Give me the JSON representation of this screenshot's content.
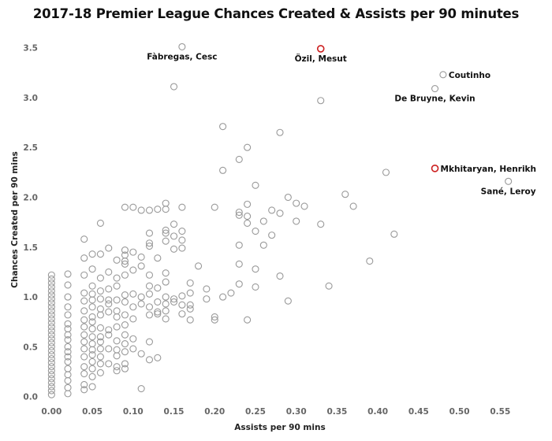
{
  "chart_data": {
    "type": "scatter",
    "title": "2017-18 Premier League Chances Created & Assists per 90 minutes",
    "xlabel": "Assists per 90 mins",
    "ylabel": "Chances Created per 90 mins",
    "xlim": [
      -0.01,
      0.57
    ],
    "ylim": [
      -0.05,
      3.6
    ],
    "xticks": [
      0.0,
      0.05,
      0.1,
      0.15,
      0.2,
      0.25,
      0.3,
      0.35,
      0.4,
      0.45,
      0.5,
      0.55
    ],
    "xtick_labels": [
      "0.00",
      "0.05",
      "0.10",
      "0.15",
      "0.20",
      "0.25",
      "0.30",
      "0.35",
      "0.40",
      "0.45",
      "0.50",
      "0.55"
    ],
    "yticks": [
      0.0,
      0.5,
      1.0,
      1.5,
      2.0,
      2.5,
      3.0,
      3.5
    ],
    "ytick_labels": [
      "0.0",
      "0.5",
      "1.0",
      "1.5",
      "2.0",
      "2.5",
      "3.0",
      "3.5"
    ],
    "grid": false,
    "colors": {
      "default_marker": "#999999",
      "highlight_marker": "#cc1f1f"
    },
    "labeled_points": [
      {
        "name": "Fàbregas, Cesc",
        "x": 0.16,
        "y": 3.51,
        "highlight": false,
        "label_side": "below"
      },
      {
        "name": "Özil, Mesut",
        "x": 0.33,
        "y": 3.49,
        "highlight": true,
        "label_side": "below"
      },
      {
        "name": "Coutinho",
        "x": 0.48,
        "y": 3.23,
        "highlight": false,
        "label_side": "right"
      },
      {
        "name": "De Bruyne, Kevin",
        "x": 0.47,
        "y": 3.09,
        "highlight": false,
        "label_side": "below"
      },
      {
        "name": "Mkhitaryan, Henrikh",
        "x": 0.47,
        "y": 2.29,
        "highlight": true,
        "label_side": "right"
      },
      {
        "name": "Sané, Leroy",
        "x": 0.56,
        "y": 2.16,
        "highlight": false,
        "label_side": "below"
      }
    ],
    "points": [
      [
        0.15,
        3.11
      ],
      [
        0.33,
        2.97
      ],
      [
        0.21,
        2.71
      ],
      [
        0.28,
        2.65
      ],
      [
        0.24,
        2.5
      ],
      [
        0.23,
        2.38
      ],
      [
        0.21,
        2.27
      ],
      [
        0.41,
        2.25
      ],
      [
        0.25,
        2.12
      ],
      [
        0.36,
        2.03
      ],
      [
        0.29,
        2.0
      ],
      [
        0.3,
        1.94
      ],
      [
        0.31,
        1.91
      ],
      [
        0.24,
        1.93
      ],
      [
        0.37,
        1.91
      ],
      [
        0.2,
        1.9
      ],
      [
        0.27,
        1.87
      ],
      [
        0.28,
        1.84
      ],
      [
        0.23,
        1.85
      ],
      [
        0.23,
        1.82
      ],
      [
        0.24,
        1.81
      ],
      [
        0.26,
        1.76
      ],
      [
        0.3,
        1.76
      ],
      [
        0.24,
        1.74
      ],
      [
        0.33,
        1.73
      ],
      [
        0.25,
        1.66
      ],
      [
        0.27,
        1.62
      ],
      [
        0.42,
        1.63
      ],
      [
        0.23,
        1.52
      ],
      [
        0.26,
        1.52
      ],
      [
        0.39,
        1.36
      ],
      [
        0.23,
        1.33
      ],
      [
        0.25,
        1.28
      ],
      [
        0.28,
        1.21
      ],
      [
        0.34,
        1.11
      ],
      [
        0.25,
        1.1
      ],
      [
        0.23,
        1.13
      ],
      [
        0.22,
        1.04
      ],
      [
        0.21,
        1.0
      ],
      [
        0.29,
        0.96
      ],
      [
        0.24,
        0.77
      ],
      [
        0.2,
        0.8
      ],
      [
        0.2,
        0.77
      ],
      [
        0.19,
        1.08
      ],
      [
        0.19,
        0.98
      ],
      [
        0.18,
        1.31
      ],
      [
        0.17,
        1.14
      ],
      [
        0.17,
        1.04
      ],
      [
        0.17,
        0.92
      ],
      [
        0.17,
        0.88
      ],
      [
        0.17,
        0.77
      ],
      [
        0.16,
        1.9
      ],
      [
        0.16,
        1.66
      ],
      [
        0.16,
        1.57
      ],
      [
        0.16,
        1.49
      ],
      [
        0.16,
        1.01
      ],
      [
        0.16,
        0.92
      ],
      [
        0.16,
        0.83
      ],
      [
        0.15,
        1.73
      ],
      [
        0.15,
        1.61
      ],
      [
        0.15,
        1.48
      ],
      [
        0.15,
        0.98
      ],
      [
        0.15,
        0.95
      ],
      [
        0.14,
        1.94
      ],
      [
        0.14,
        1.88
      ],
      [
        0.14,
        1.67
      ],
      [
        0.14,
        1.64
      ],
      [
        0.14,
        1.56
      ],
      [
        0.14,
        1.24
      ],
      [
        0.14,
        1.15
      ],
      [
        0.14,
        1.0
      ],
      [
        0.14,
        0.93
      ],
      [
        0.14,
        0.86
      ],
      [
        0.14,
        0.78
      ],
      [
        0.13,
        1.88
      ],
      [
        0.13,
        1.39
      ],
      [
        0.13,
        1.09
      ],
      [
        0.13,
        0.95
      ],
      [
        0.13,
        0.85
      ],
      [
        0.13,
        0.83
      ],
      [
        0.13,
        0.39
      ],
      [
        0.12,
        1.87
      ],
      [
        0.12,
        1.64
      ],
      [
        0.12,
        1.54
      ],
      [
        0.12,
        1.51
      ],
      [
        0.12,
        1.22
      ],
      [
        0.12,
        1.11
      ],
      [
        0.12,
        1.03
      ],
      [
        0.12,
        0.9
      ],
      [
        0.12,
        0.82
      ],
      [
        0.12,
        0.55
      ],
      [
        0.12,
        0.37
      ],
      [
        0.11,
        1.87
      ],
      [
        0.11,
        1.4
      ],
      [
        0.11,
        1.31
      ],
      [
        0.11,
        1.0
      ],
      [
        0.11,
        0.93
      ],
      [
        0.11,
        0.43
      ],
      [
        0.11,
        0.08
      ],
      [
        0.1,
        1.9
      ],
      [
        0.1,
        1.45
      ],
      [
        0.1,
        1.27
      ],
      [
        0.1,
        1.03
      ],
      [
        0.1,
        0.9
      ],
      [
        0.1,
        0.78
      ],
      [
        0.1,
        0.58
      ],
      [
        0.1,
        0.48
      ],
      [
        0.09,
        1.9
      ],
      [
        0.09,
        1.47
      ],
      [
        0.09,
        1.42
      ],
      [
        0.09,
        1.36
      ],
      [
        0.09,
        1.33
      ],
      [
        0.09,
        1.22
      ],
      [
        0.09,
        1.02
      ],
      [
        0.09,
        0.95
      ],
      [
        0.09,
        0.82
      ],
      [
        0.09,
        0.72
      ],
      [
        0.09,
        0.62
      ],
      [
        0.09,
        0.53
      ],
      [
        0.09,
        0.45
      ],
      [
        0.09,
        0.33
      ],
      [
        0.09,
        0.28
      ],
      [
        0.08,
        1.37
      ],
      [
        0.08,
        1.19
      ],
      [
        0.08,
        1.11
      ],
      [
        0.08,
        0.97
      ],
      [
        0.08,
        0.86
      ],
      [
        0.08,
        0.8
      ],
      [
        0.08,
        0.7
      ],
      [
        0.08,
        0.56
      ],
      [
        0.08,
        0.47
      ],
      [
        0.08,
        0.41
      ],
      [
        0.08,
        0.3
      ],
      [
        0.08,
        0.26
      ],
      [
        0.07,
        1.49
      ],
      [
        0.07,
        1.25
      ],
      [
        0.07,
        1.08
      ],
      [
        0.07,
        0.97
      ],
      [
        0.07,
        0.93
      ],
      [
        0.07,
        0.85
      ],
      [
        0.07,
        0.67
      ],
      [
        0.07,
        0.62
      ],
      [
        0.07,
        0.48
      ],
      [
        0.07,
        0.33
      ],
      [
        0.06,
        1.74
      ],
      [
        0.06,
        1.43
      ],
      [
        0.06,
        1.19
      ],
      [
        0.06,
        1.06
      ],
      [
        0.06,
        0.98
      ],
      [
        0.06,
        0.88
      ],
      [
        0.06,
        0.82
      ],
      [
        0.06,
        0.69
      ],
      [
        0.06,
        0.6
      ],
      [
        0.06,
        0.55
      ],
      [
        0.06,
        0.48
      ],
      [
        0.06,
        0.4
      ],
      [
        0.06,
        0.33
      ],
      [
        0.06,
        0.24
      ],
      [
        0.05,
        1.43
      ],
      [
        0.05,
        1.28
      ],
      [
        0.05,
        1.11
      ],
      [
        0.05,
        1.03
      ],
      [
        0.05,
        0.97
      ],
      [
        0.05,
        0.9
      ],
      [
        0.05,
        0.8
      ],
      [
        0.05,
        0.75
      ],
      [
        0.05,
        0.68
      ],
      [
        0.05,
        0.6
      ],
      [
        0.05,
        0.53
      ],
      [
        0.05,
        0.47
      ],
      [
        0.05,
        0.42
      ],
      [
        0.05,
        0.35
      ],
      [
        0.05,
        0.28
      ],
      [
        0.05,
        0.2
      ],
      [
        0.05,
        0.1
      ],
      [
        0.04,
        1.58
      ],
      [
        0.04,
        1.39
      ],
      [
        0.04,
        1.22
      ],
      [
        0.04,
        1.04
      ],
      [
        0.04,
        0.96
      ],
      [
        0.04,
        0.86
      ],
      [
        0.04,
        0.77
      ],
      [
        0.04,
        0.7
      ],
      [
        0.04,
        0.62
      ],
      [
        0.04,
        0.55
      ],
      [
        0.04,
        0.48
      ],
      [
        0.04,
        0.4
      ],
      [
        0.04,
        0.3
      ],
      [
        0.04,
        0.23
      ],
      [
        0.04,
        0.12
      ],
      [
        0.04,
        0.07
      ],
      [
        0.02,
        1.23
      ],
      [
        0.02,
        1.12
      ],
      [
        0.02,
        1.0
      ],
      [
        0.02,
        0.9
      ],
      [
        0.02,
        0.82
      ],
      [
        0.02,
        0.73
      ],
      [
        0.02,
        0.68
      ],
      [
        0.02,
        0.62
      ],
      [
        0.02,
        0.57
      ],
      [
        0.02,
        0.5
      ],
      [
        0.02,
        0.45
      ],
      [
        0.02,
        0.4
      ],
      [
        0.02,
        0.35
      ],
      [
        0.02,
        0.28
      ],
      [
        0.02,
        0.22
      ],
      [
        0.02,
        0.16
      ],
      [
        0.02,
        0.09
      ],
      [
        0.02,
        0.03
      ],
      [
        0.0,
        1.22
      ],
      [
        0.0,
        1.18
      ],
      [
        0.0,
        1.14
      ],
      [
        0.0,
        1.1
      ],
      [
        0.0,
        1.06
      ],
      [
        0.0,
        1.02
      ],
      [
        0.0,
        0.98
      ],
      [
        0.0,
        0.94
      ],
      [
        0.0,
        0.9
      ],
      [
        0.0,
        0.86
      ],
      [
        0.0,
        0.82
      ],
      [
        0.0,
        0.78
      ],
      [
        0.0,
        0.74
      ],
      [
        0.0,
        0.7
      ],
      [
        0.0,
        0.66
      ],
      [
        0.0,
        0.62
      ],
      [
        0.0,
        0.58
      ],
      [
        0.0,
        0.54
      ],
      [
        0.0,
        0.5
      ],
      [
        0.0,
        0.46
      ],
      [
        0.0,
        0.42
      ],
      [
        0.0,
        0.38
      ],
      [
        0.0,
        0.34
      ],
      [
        0.0,
        0.3
      ],
      [
        0.0,
        0.26
      ],
      [
        0.0,
        0.22
      ],
      [
        0.0,
        0.18
      ],
      [
        0.0,
        0.14
      ],
      [
        0.0,
        0.1
      ],
      [
        0.0,
        0.06
      ],
      [
        0.0,
        0.02
      ]
    ]
  }
}
